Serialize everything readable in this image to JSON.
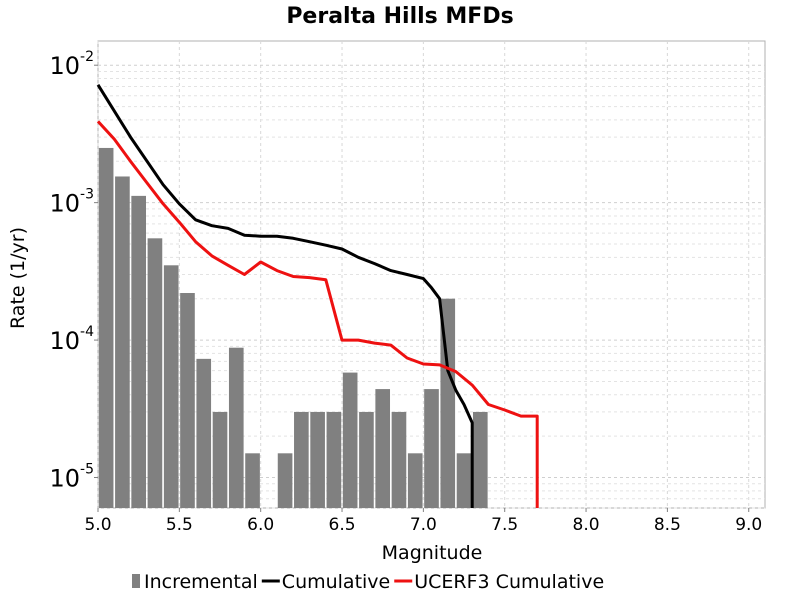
{
  "chart_data": {
    "type": "bar",
    "title": "Peralta Hills MFDs",
    "xlabel": "Magnitude",
    "ylabel": "Rate (1/yr)",
    "y_scale": "log",
    "xlim": [
      5.0,
      9.1
    ],
    "ylim": [
      6e-06,
      0.015
    ],
    "grid": true,
    "legend_position": "bottom",
    "x_ticks": [
      "5.0",
      "5.5",
      "6.0",
      "6.5",
      "7.0",
      "7.5",
      "8.0",
      "8.5",
      "9.0"
    ],
    "y_ticks": [
      {
        "base": "10",
        "exp": "-5"
      },
      {
        "base": "10",
        "exp": "-4"
      },
      {
        "base": "10",
        "exp": "-3"
      },
      {
        "base": "10",
        "exp": "-2"
      }
    ],
    "bar_width": 0.09,
    "series": [
      {
        "name": "Incremental",
        "kind": "bar",
        "color": "#808080",
        "x": [
          5.05,
          5.15,
          5.25,
          5.35,
          5.45,
          5.55,
          5.65,
          5.75,
          5.85,
          5.95,
          6.15,
          6.25,
          6.35,
          6.45,
          6.55,
          6.65,
          6.75,
          6.85,
          6.95,
          7.05,
          7.15,
          7.25,
          7.35
        ],
        "y": [
          0.0025,
          0.00155,
          0.00112,
          0.00055,
          0.00035,
          0.00022,
          7.3e-05,
          3e-05,
          8.8e-05,
          1.5e-05,
          1.5e-05,
          3e-05,
          3e-05,
          3e-05,
          5.8e-05,
          3e-05,
          4.4e-05,
          3e-05,
          1.5e-05,
          4.4e-05,
          0.0002,
          1.5e-05,
          3e-05
        ]
      },
      {
        "name": "Cumulative",
        "kind": "line",
        "color": "#000000",
        "x": [
          5.0,
          5.2,
          5.4,
          5.5,
          5.6,
          5.7,
          5.8,
          5.9,
          6.0,
          6.1,
          6.2,
          6.3,
          6.4,
          6.5,
          6.6,
          6.7,
          6.8,
          6.9,
          7.0,
          7.05,
          7.1,
          7.15,
          7.2,
          7.25,
          7.3,
          7.3
        ],
        "y": [
          0.0072,
          0.003,
          0.00135,
          0.00098,
          0.00075,
          0.00068,
          0.00065,
          0.00058,
          0.00057,
          0.00057,
          0.00055,
          0.00052,
          0.00049,
          0.00046,
          0.0004,
          0.00036,
          0.00032,
          0.0003,
          0.00028,
          0.00024,
          0.0002,
          6e-05,
          4.3e-05,
          3.4e-05,
          2.5e-05,
          6e-06
        ]
      },
      {
        "name": "UCERF3 Cumulative",
        "kind": "line",
        "color": "#ee1111",
        "x": [
          5.0,
          5.1,
          5.2,
          5.3,
          5.4,
          5.5,
          5.6,
          5.7,
          5.8,
          5.9,
          6.0,
          6.1,
          6.2,
          6.3,
          6.4,
          6.5,
          6.6,
          6.7,
          6.8,
          6.9,
          7.0,
          7.1,
          7.2,
          7.3,
          7.4,
          7.5,
          7.6,
          7.7,
          7.7
        ],
        "y": [
          0.0039,
          0.0029,
          0.002,
          0.0014,
          0.00098,
          0.00072,
          0.00052,
          0.00041,
          0.00035,
          0.0003,
          0.00037,
          0.00032,
          0.00029,
          0.000285,
          0.000275,
          0.0001,
          0.0001,
          9.5e-05,
          9.2e-05,
          7.4e-05,
          6.7e-05,
          6.6e-05,
          5.9e-05,
          4.7e-05,
          3.4e-05,
          3.1e-05,
          2.8e-05,
          2.8e-05,
          6e-06
        ]
      }
    ]
  }
}
